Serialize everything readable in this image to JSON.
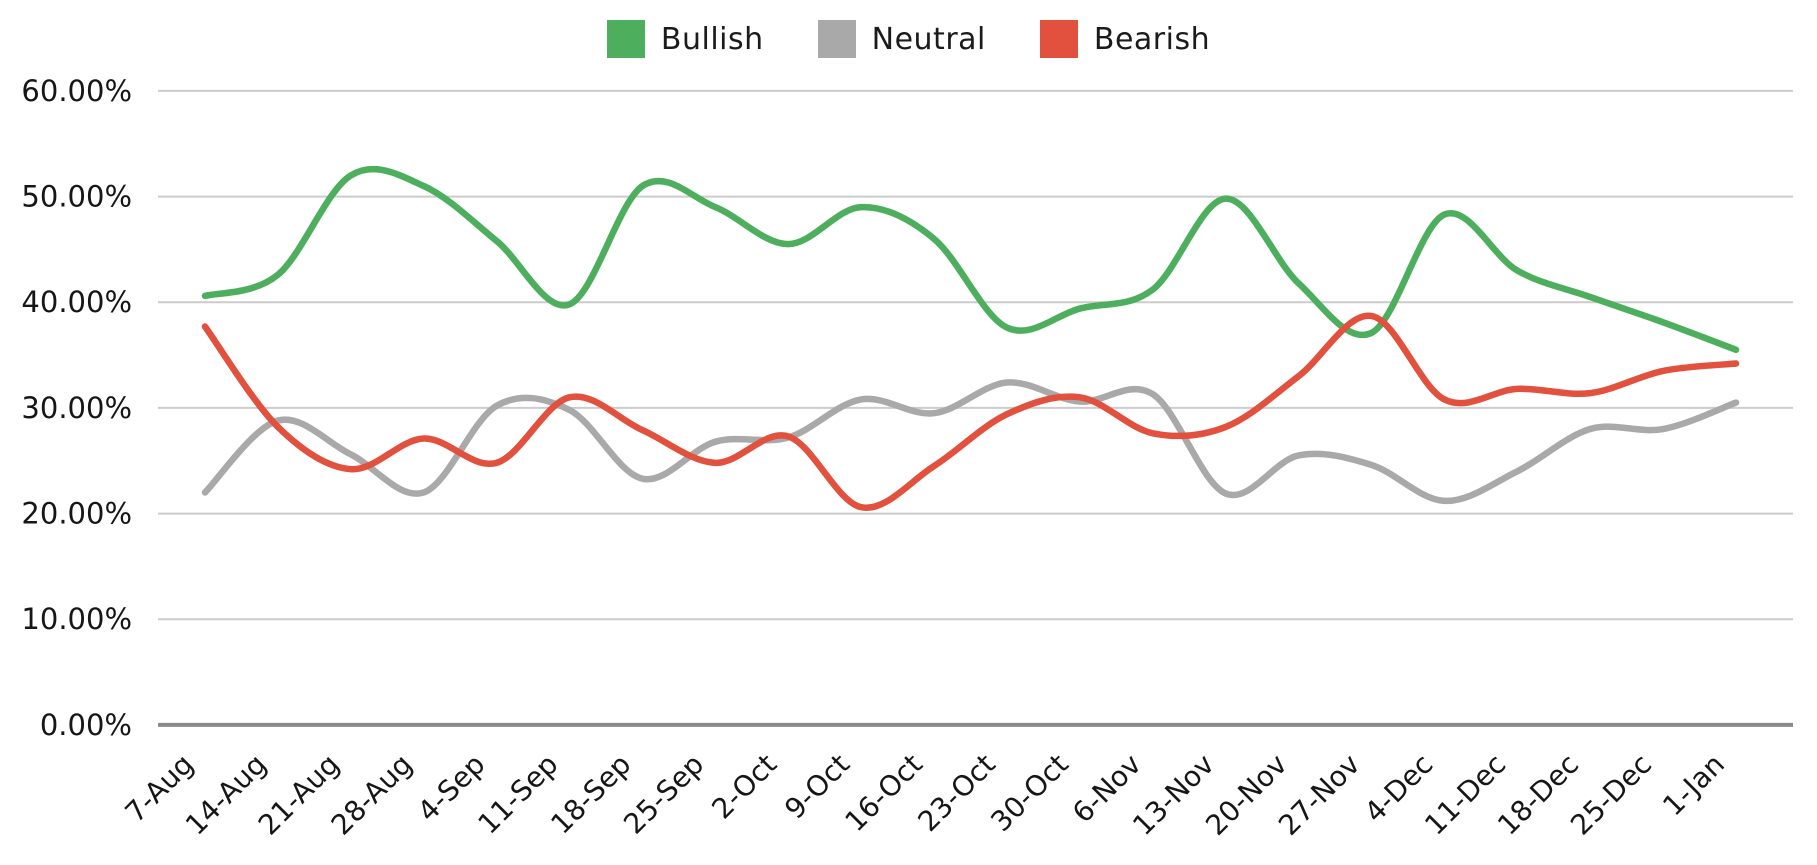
{
  "legend": {
    "position": "top",
    "items": [
      {
        "label": "Bullish",
        "color": "#4DAF5E"
      },
      {
        "label": "Neutral",
        "color": "#A9A9A9"
      },
      {
        "label": "Bearish",
        "color": "#E2503E"
      }
    ]
  },
  "chart_data": {
    "type": "line",
    "smoothing": true,
    "grid": true,
    "legend_position": "top",
    "categories": [
      "7-Aug",
      "14-Aug",
      "21-Aug",
      "28-Aug",
      "4-Sep",
      "11-Sep",
      "18-Sep",
      "25-Sep",
      "2-Oct",
      "9-Oct",
      "16-Oct",
      "23-Oct",
      "30-Oct",
      "6-Nov",
      "13-Nov",
      "20-Nov",
      "27-Nov",
      "4-Dec",
      "11-Dec",
      "18-Dec",
      "25-Dec",
      "1-Jan"
    ],
    "series": [
      {
        "name": "Bullish",
        "color": "#4DAF5E",
        "values": [
          40.6,
          42.6,
          52.0,
          51.0,
          45.8,
          39.8,
          51.0,
          49.0,
          45.5,
          49.0,
          46.0,
          37.6,
          39.4,
          41.2,
          49.8,
          41.8,
          37.1,
          48.3,
          43.0,
          40.5,
          38.1,
          35.5
        ]
      },
      {
        "name": "Neutral",
        "color": "#A9A9A9",
        "values": [
          22.0,
          28.8,
          25.6,
          22.0,
          30.2,
          29.8,
          23.3,
          26.8,
          27.2,
          30.8,
          29.5,
          32.4,
          30.6,
          31.3,
          21.9,
          25.5,
          24.6,
          21.2,
          24.0,
          28.0,
          28.0,
          30.5
        ]
      },
      {
        "name": "Bearish",
        "color": "#E2503E",
        "values": [
          37.7,
          28.2,
          24.2,
          27.1,
          24.8,
          31.0,
          27.9,
          24.8,
          27.3,
          20.6,
          24.5,
          29.4,
          31.0,
          27.6,
          28.2,
          33.0,
          38.7,
          30.8,
          31.8,
          31.4,
          33.5,
          34.2
        ]
      }
    ],
    "y_ticks": [
      "60.00%",
      "50.00%",
      "40.00%",
      "30.00%",
      "20.00%",
      "10.00%",
      "0.00%"
    ],
    "ylim": [
      0,
      60
    ],
    "title": ""
  }
}
